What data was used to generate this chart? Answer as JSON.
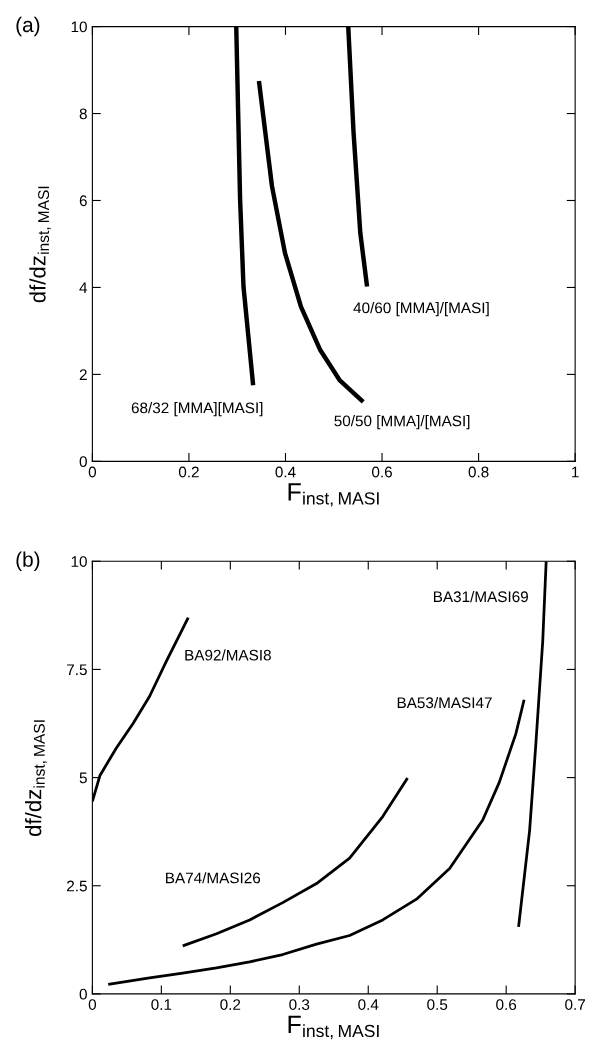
{
  "chart_data": [
    {
      "type": "line",
      "title": "(a)",
      "xlabel": "F$_{inst,MASI}$",
      "ylabel": "df/dz$_{inst,MASI}$",
      "xlim": [
        0,
        1
      ],
      "ylim": [
        0,
        10
      ],
      "xticks": [
        0,
        0.2,
        0.4,
        0.6,
        0.8,
        1
      ],
      "yticks": [
        0,
        2,
        4,
        6,
        8,
        10
      ],
      "grid": false,
      "legend": false,
      "marker": "none",
      "line_style": "solid",
      "series": [
        {
          "name": "68/32 [MMA][MASI]",
          "color": "#000000",
          "x": [
            0.298,
            0.302,
            0.306,
            0.313,
            0.333
          ],
          "values": [
            10,
            8.0,
            6.02,
            4.02,
            1.75
          ]
        },
        {
          "name": "50/50 [MMA]/[MASI]",
          "color": "#000000",
          "x": [
            0.345,
            0.372,
            0.399,
            0.432,
            0.472,
            0.512,
            0.561
          ],
          "values": [
            8.75,
            6.33,
            4.79,
            3.56,
            2.56,
            1.87,
            1.37
          ]
        },
        {
          "name": "40/60 [MMA]/[MASI]",
          "color": "#000000",
          "x": [
            0.53,
            0.541,
            0.555,
            0.569
          ],
          "values": [
            10,
            7.56,
            5.25,
            4.02
          ]
        }
      ]
    },
    {
      "type": "line",
      "title": "(b)",
      "xlabel": "F$_{inst,MASI}$",
      "ylabel": "df/dz$_{inst,MASI}$",
      "xlim": [
        0,
        0.7
      ],
      "ylim": [
        0,
        10
      ],
      "xticks": [
        0,
        0.1,
        0.2,
        0.3,
        0.4,
        0.5,
        0.6,
        0.7
      ],
      "yticks": [
        0,
        2.5,
        5,
        7.5,
        10
      ],
      "grid": false,
      "legend": false,
      "marker": "none",
      "line_style": "solid",
      "series": [
        {
          "name": "BA92/MASI8",
          "color": "#000000",
          "x": [
            0,
            0.011,
            0.035,
            0.059,
            0.083,
            0.107,
            0.139
          ],
          "values": [
            4.45,
            5.05,
            5.69,
            6.25,
            6.88,
            7.68,
            8.7
          ]
        },
        {
          "name": "BA74/MASI26",
          "color": "#000000",
          "x": [
            0.131,
            0.18,
            0.228,
            0.276,
            0.325,
            0.373,
            0.421,
            0.457
          ],
          "values": [
            1.11,
            1.39,
            1.71,
            2.11,
            2.55,
            3.14,
            4.1,
            4.99
          ]
        },
        {
          "name": "BA53/MASI47",
          "color": "#000000",
          "x": [
            0.023,
            0.083,
            0.131,
            0.18,
            0.228,
            0.276,
            0.325,
            0.373,
            0.421,
            0.47,
            0.518,
            0.566,
            0.59,
            0.614,
            0.626
          ],
          "values": [
            0.22,
            0.37,
            0.48,
            0.6,
            0.74,
            0.91,
            1.15,
            1.35,
            1.71,
            2.19,
            2.9,
            4.02,
            4.89,
            6.01,
            6.8
          ]
        },
        {
          "name": "BA31/MASI69",
          "color": "#000000",
          "x": [
            0.618,
            0.634,
            0.643,
            0.653,
            0.658
          ],
          "values": [
            1.55,
            3.78,
            5.77,
            8.15,
            10
          ]
        }
      ]
    }
  ]
}
